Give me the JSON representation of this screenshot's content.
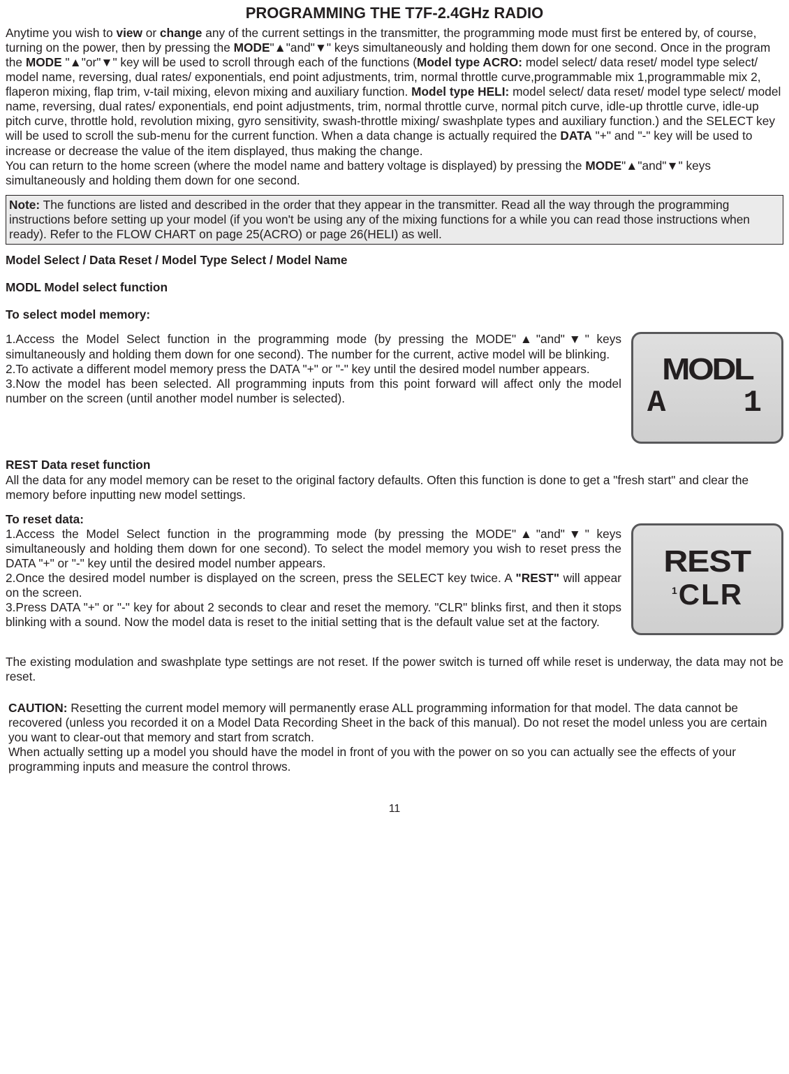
{
  "title": "PROGRAMMING THE T7F-2.4GHz RADIO",
  "intro_html": "Anytime you wish to <b>view</b> or <b>change</b> any of the current settings in the transmitter, the programming mode must first be entered by, of course, turning on the power, then by pressing the <b>MODE</b>\"▲\"and\"▼\" keys simultaneously and holding them down for one second. Once in the program the <b>MODE</b> \"▲\"or\"▼\" key will be used to scroll through each of the functions (<b>Model type ACRO:</b> model select/ data reset/ model type select/ model name, reversing, dual rates/ exponentials, end point adjustments, trim, normal throttle curve,programmable mix 1,programmable mix 2, flaperon mixing, flap trim, v-tail mixing, elevon mixing and auxiliary function.   <b>Model type HELI:</b> model select/ data reset/ model type select/ model name, reversing, dual rates/ exponentials, end point adjustments, trim, normal throttle curve, normal pitch curve, idle-up throttle curve, idle-up pitch curve, throttle hold, revolution mixing, gyro sensitivity, swash-throttle mixing/ swashplate types and auxiliary function.) and the SELECT key will be used to scroll the sub-menu for the current function. When a data change is actually required the <b>DATA</b> \"+\" and \"-\" key will be used to increase or decrease the value of the item displayed, thus making the change.<br>You can return to the home screen (where the model name and battery voltage is displayed) by pressing the <b>MODE</b>\"▲\"and\"▼\" keys simultaneously and holding them down for one second.",
  "note_html": "<b>Note:</b> The functions are listed and described in the order that they appear in the transmitter. Read all the way through the programming instructions before setting up your model (if you won't be using any of the mixing functions for a while you can read those instructions when ready). Refer to the FLOW CHART on page 25(ACRO) or page 26(HELI) as well.",
  "heading_modelselect": "Model Select / Data Reset / Model Type Select / Model Name",
  "heading_modl": "MODL Model select function",
  "heading_toselect": "To select model memory:",
  "modl_steps_html": "1.Access the Model Select function in the programming mode (by pressing the MODE\"▲\"and\"▼\" keys simultaneously and holding them down for one second). The number for the current, active model will be blinking.<br>2.To activate a different model memory press the DATA \"+\" or \"-\" key until the desired model number appears.<br>3.Now the model has been selected. All programming inputs from this point forward will affect only the model number on the screen (until another model number is selected).",
  "lcd_modl_line1": "MODL",
  "lcd_modl_line2_a": "A",
  "lcd_modl_line2_b": "1",
  "heading_rest": "REST Data reset function",
  "rest_intro": "All the data for any model memory can be reset to the original factory defaults. Often this function is done to get a \"fresh start\" and clear the memory before inputting new model settings.",
  "heading_toreset": "To reset data:",
  "rest_steps_html": "1.Access the Model Select function in the programming mode (by pressing the MODE\"▲\"and\"▼\" keys simultaneously and holding them down for one second). To select the model memory you wish to reset press the DATA \"+\" or \"-\" key until the desired model number appears.<br>2.Once the desired model number is displayed on the screen, press the SELECT key twice. A <b>\"REST\"</b> will appear on the screen.<br>3.Press DATA \"+\" or \"-\" key for about 2 seconds to clear and reset the memory. \"CLR\" blinks first, and then it stops blinking with a sound. Now the model data is reset to the initial setting that is the default value set at the factory.",
  "lcd_rest_line1": "REST",
  "lcd_rest_line2_a": "1",
  "lcd_rest_line2_b": "CLR",
  "note_notreset": "The existing modulation and swashplate type settings are not reset. If the power switch is turned off while reset is underway, the data may not be reset.",
  "caution_html": "<b>CAUTION:</b> Resetting the current model memory will permanently erase ALL programming information for that model. The data cannot be recovered (unless you recorded it on a Model Data Recording Sheet in the back of this manual). Do not reset the model unless you are certain you want to clear-out that memory and start from scratch.<br>When actually setting up a model you should have the model in front of you with the power on so you can actually see the effects of your programming inputs and measure the control throws.",
  "page_number": "11"
}
